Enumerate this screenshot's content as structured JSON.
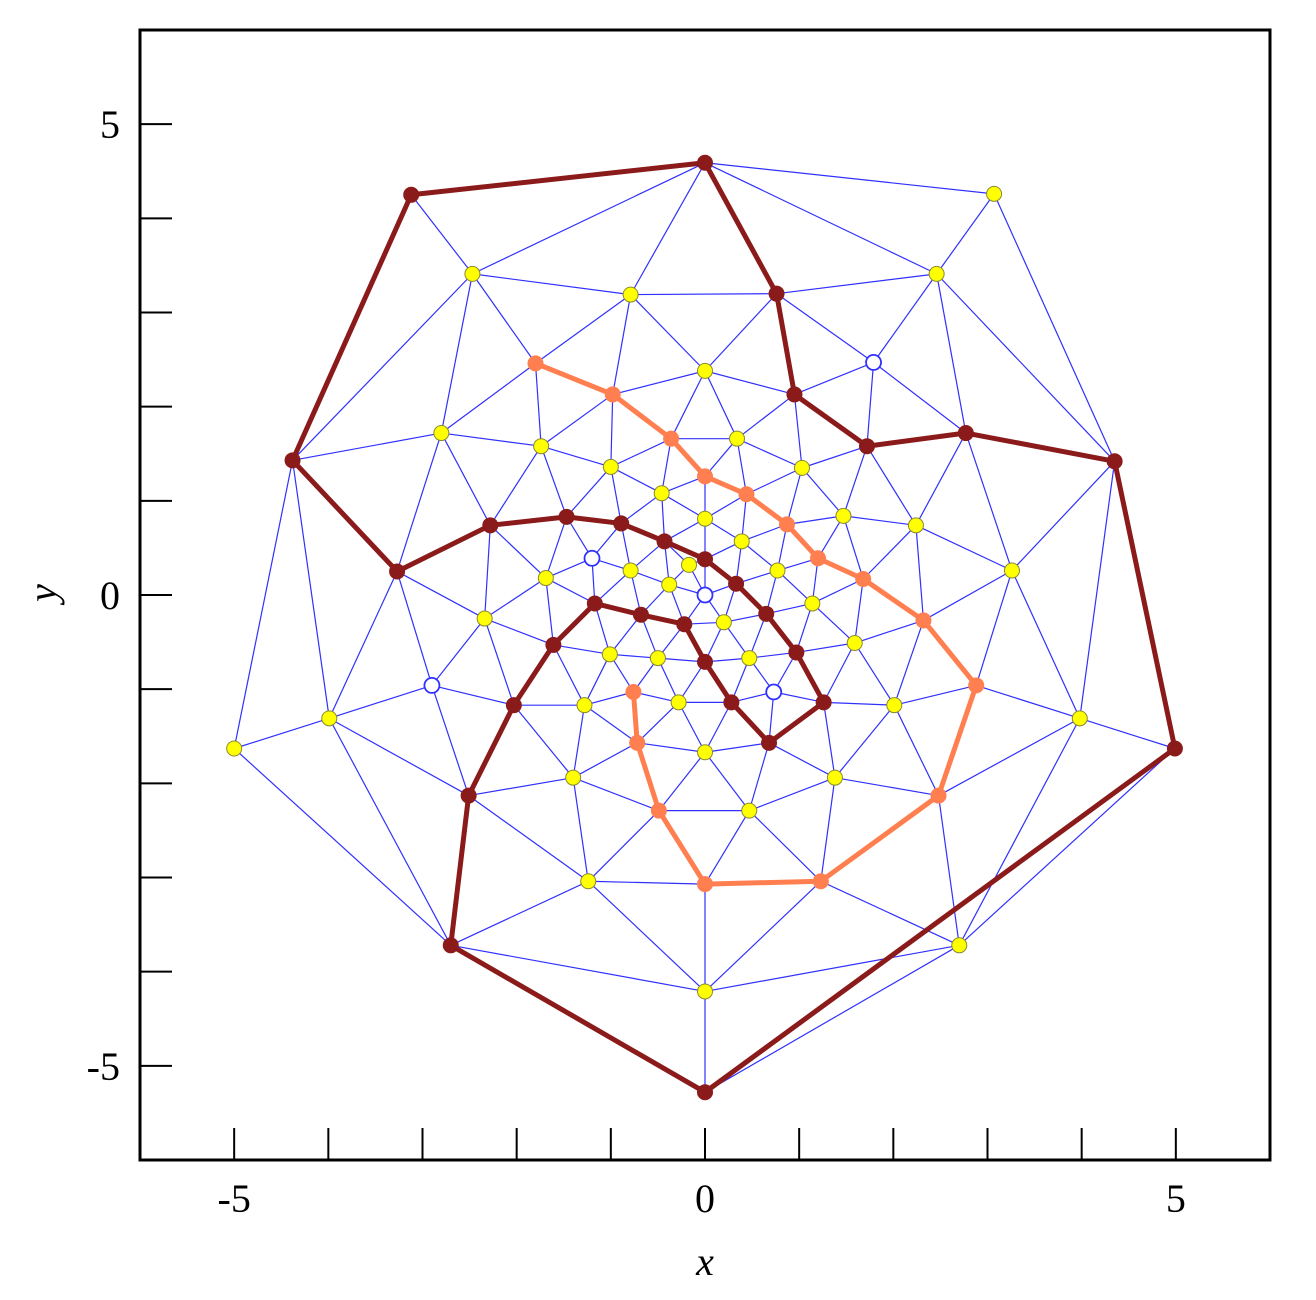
{
  "chart_data": {
    "type": "mesh",
    "xlabel": "x",
    "ylabel": "y",
    "xlim": [
      -6,
      6
    ],
    "ylim": [
      -6,
      6
    ],
    "xticks": [
      -5,
      0,
      5
    ],
    "yticks": [
      -5,
      0,
      5
    ],
    "x_minor_ticks": [
      -4,
      -3,
      -2,
      -1,
      1,
      2,
      3,
      4
    ],
    "y_minor_ticks": [
      -4,
      -3,
      -2,
      -1,
      1,
      2,
      3,
      4
    ],
    "mesh": true,
    "mesh_color": "#3030ff",
    "series": [
      {
        "color": "#ffff00",
        "marker": "filled",
        "line": false,
        "x": [
          3.07,
          -2.47,
          -0.79,
          2.46,
          0,
          -2.8,
          -1.74,
          0.34,
          -1.0,
          1.03,
          -0.46,
          0,
          1.47,
          2.24,
          0.39,
          -0.17,
          -0.79,
          0.77,
          3.26,
          -1.69,
          -0.38,
          1.14,
          -2.34,
          0.2,
          1.59,
          -1.01,
          -0.5,
          0.47,
          -1.28,
          -0.28,
          2.01,
          -3.99,
          3.98,
          -5.0,
          0,
          -1.4,
          1.38,
          0.47,
          -1.24,
          2.7,
          0
        ],
        "y": [
          4.26,
          3.41,
          3.19,
          3.41,
          2.38,
          1.72,
          1.58,
          1.66,
          1.36,
          1.35,
          1.08,
          0.81,
          0.84,
          0.74,
          0.57,
          0.32,
          0.26,
          0.26,
          0.26,
          0.18,
          0.11,
          -0.09,
          -0.25,
          -0.29,
          -0.51,
          -0.63,
          -0.67,
          -0.67,
          -1.17,
          -1.14,
          -1.17,
          -1.31,
          -1.31,
          -1.63,
          -1.67,
          -1.94,
          -1.94,
          -2.29,
          -3.04,
          -3.72,
          -4.21
        ]
      },
      {
        "color": "#8b1a1a",
        "marker": "filled",
        "line": true,
        "closed": true,
        "x": [
          0,
          0.76,
          0.95,
          1.72,
          2.77,
          4.35,
          4.99,
          0,
          -2.7,
          -2.51,
          -2.03,
          -1.61,
          -1.17,
          -0.68,
          -0.22,
          0,
          0.28,
          0.68,
          1.26,
          0.97,
          0.65,
          0.33,
          0,
          -0.43,
          -0.89,
          -1.47,
          -2.28,
          -3.27,
          -4.38,
          -3.12
        ],
        "y": [
          4.59,
          3.2,
          2.13,
          1.58,
          1.72,
          1.42,
          -1.63,
          -5.28,
          -3.72,
          -2.13,
          -1.17,
          -0.53,
          -0.09,
          -0.21,
          -0.31,
          -0.71,
          -1.14,
          -1.57,
          -1.14,
          -0.61,
          -0.2,
          0.12,
          0.38,
          0.57,
          0.76,
          0.83,
          0.74,
          0.25,
          1.43,
          4.25
        ]
      },
      {
        "color": "#ff7f50",
        "marker": "filled",
        "line": true,
        "closed": false,
        "x": [
          -1.8,
          -0.98,
          -0.36,
          0,
          0.44,
          0.87,
          1.2,
          1.68,
          2.32,
          2.88,
          2.48,
          1.23,
          0,
          -0.49,
          -0.72,
          -0.76
        ],
        "y": [
          2.46,
          2.13,
          1.66,
          1.26,
          1.07,
          0.75,
          0.39,
          0.17,
          -0.27,
          -0.96,
          -2.13,
          -3.04,
          -3.07,
          -2.29,
          -1.57,
          -1.03
        ]
      },
      {
        "color": "#3030ff",
        "marker": "open",
        "line": false,
        "x": [
          0,
          -1.2,
          1.79,
          -2.9,
          0.73
        ],
        "y": [
          0,
          0.39,
          2.47,
          -0.96,
          -1.03
        ]
      }
    ]
  }
}
